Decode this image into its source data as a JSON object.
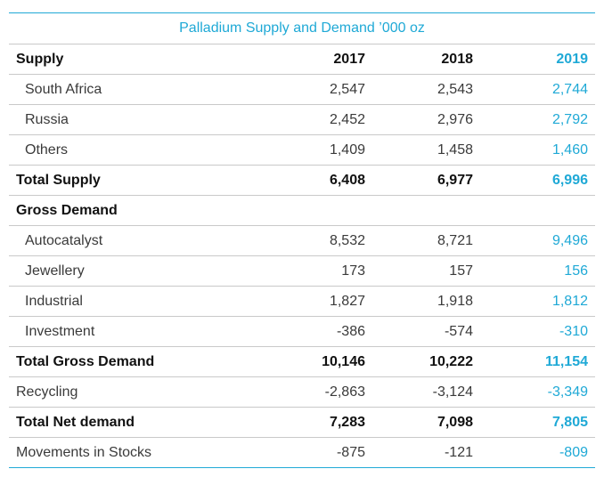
{
  "title": "Palladium Supply and Demand ’000 oz",
  "header": {
    "label": "Supply",
    "y2017": "2017",
    "y2018": "2018",
    "y2019": "2019"
  },
  "rows": [
    {
      "label": "South Africa",
      "v2017": "2,547",
      "v2018": "2,543",
      "v2019": "2,744"
    },
    {
      "label": "Russia",
      "v2017": "2,452",
      "v2018": "2,976",
      "v2019": "2,792"
    },
    {
      "label": "Others",
      "v2017": "1,409",
      "v2018": "1,458",
      "v2019": "1,460"
    },
    {
      "label": "Total Supply",
      "v2017": "6,408",
      "v2018": "6,977",
      "v2019": "6,996"
    },
    {
      "label": "Gross Demand",
      "v2017": "",
      "v2018": "",
      "v2019": ""
    },
    {
      "label": "Autocatalyst",
      "v2017": "8,532",
      "v2018": "8,721",
      "v2019": "9,496"
    },
    {
      "label": "Jewellery",
      "v2017": "173",
      "v2018": "157",
      "v2019": "156"
    },
    {
      "label": "Industrial",
      "v2017": "1,827",
      "v2018": "1,918",
      "v2019": "1,812"
    },
    {
      "label": "Investment",
      "v2017": "-386",
      "v2018": "-574",
      "v2019": "-310"
    },
    {
      "label": "Total Gross Demand",
      "v2017": "10,146",
      "v2018": "10,222",
      "v2019": "11,154"
    },
    {
      "label": "Recycling",
      "v2017": "-2,863",
      "v2018": "-3,124",
      "v2019": "-3,349"
    },
    {
      "label": "Total Net demand",
      "v2017": "7,283",
      "v2018": "7,098",
      "v2019": "7,805"
    },
    {
      "label": "Movements in Stocks",
      "v2017": "-875",
      "v2018": "-121",
      "v2019": "-809"
    }
  ],
  "colors": {
    "accent": "#1fa9d6",
    "text": "#3a3a3a",
    "rule": "#c9c9c9"
  }
}
